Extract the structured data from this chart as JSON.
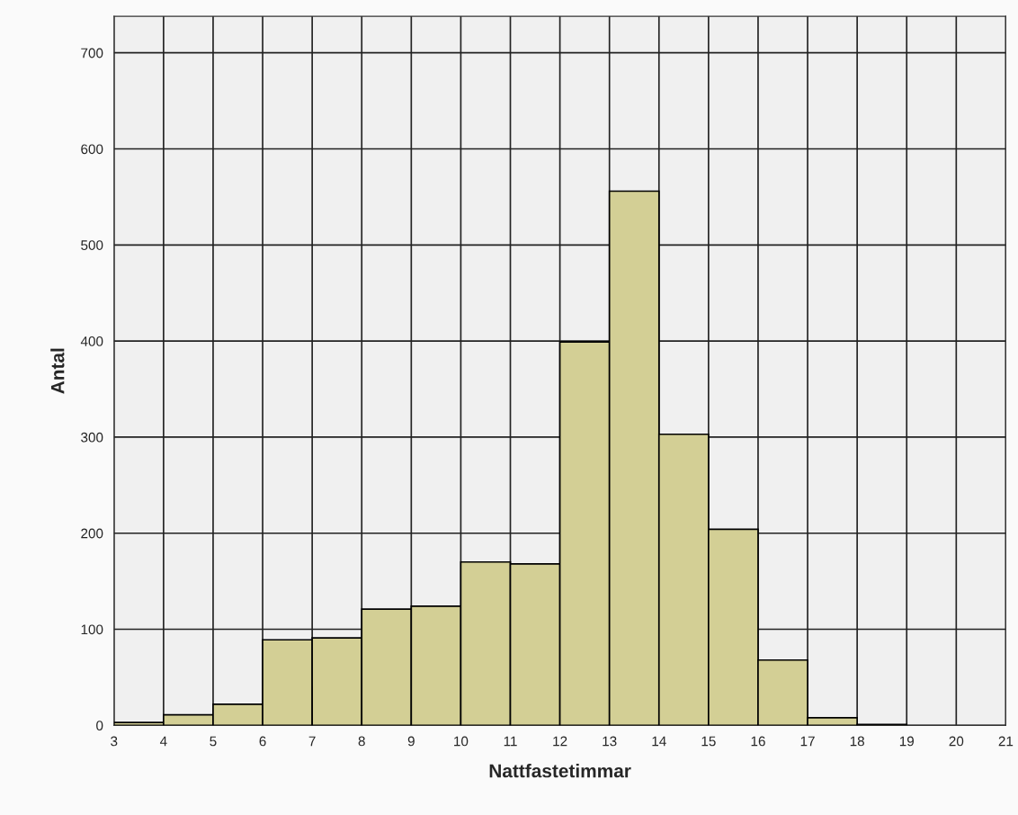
{
  "chart_data": {
    "type": "histogram",
    "xlabel": "Nattfastetimmar",
    "ylabel": "Antal",
    "bins": [
      3,
      4,
      5,
      6,
      7,
      8,
      9,
      10,
      11,
      12,
      13,
      14,
      15,
      16,
      17,
      18,
      19,
      20,
      21
    ],
    "values": [
      3,
      11,
      22,
      89,
      91,
      121,
      124,
      170,
      168,
      399,
      556,
      303,
      204,
      68,
      8,
      1,
      0,
      0
    ],
    "color": "#d3cf95",
    "xlim": [
      3,
      21
    ],
    "xticks": [
      3,
      4,
      5,
      6,
      7,
      8,
      9,
      10,
      11,
      12,
      13,
      14,
      15,
      16,
      17,
      18,
      19,
      20,
      21
    ],
    "ylim": [
      0,
      738
    ],
    "yticks": [
      0,
      100,
      200,
      300,
      400,
      500,
      600,
      700
    ],
    "grid": true
  }
}
